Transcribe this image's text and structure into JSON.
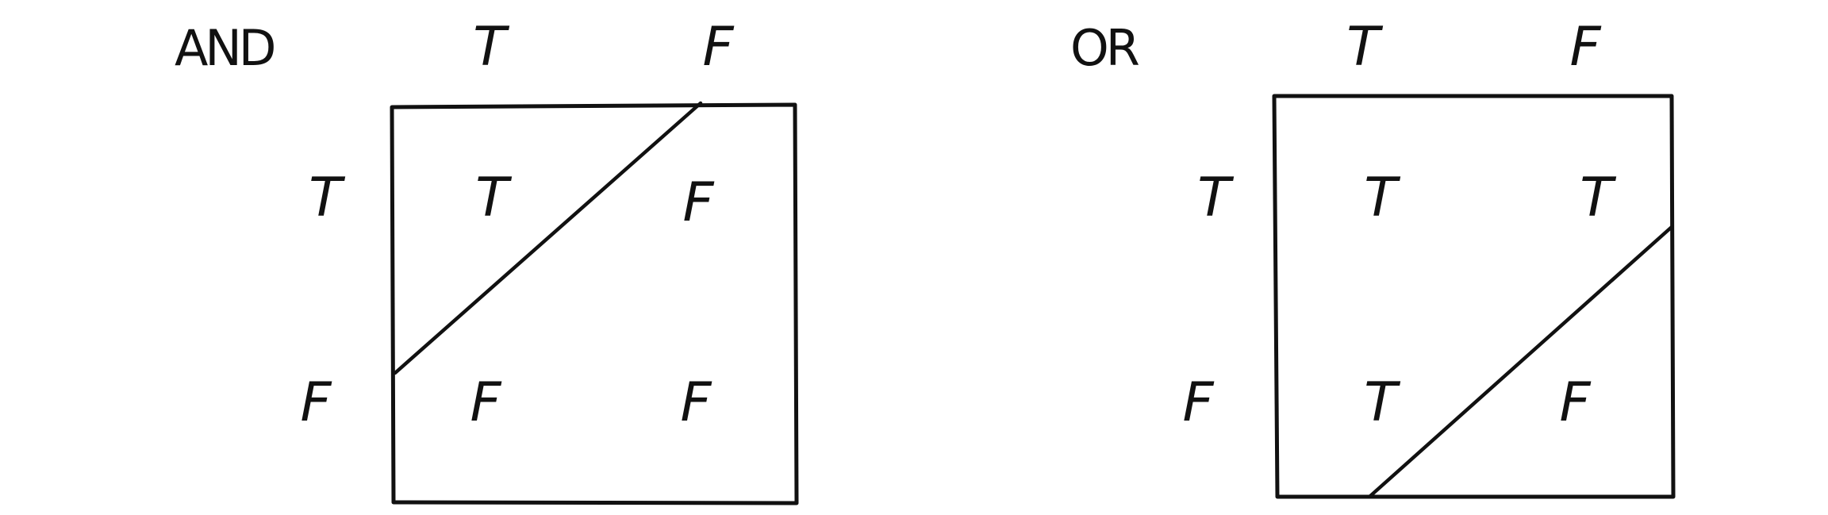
{
  "and_table": {
    "operator": "AND",
    "column_headers": [
      "T",
      "F"
    ],
    "row_headers": [
      "T",
      "F"
    ],
    "cells": [
      [
        "T",
        "F"
      ],
      [
        "F",
        "F"
      ]
    ]
  },
  "or_table": {
    "operator": "OR",
    "column_headers": [
      "T",
      "F"
    ],
    "row_headers": [
      "T",
      "F"
    ],
    "cells": [
      [
        "T",
        "T"
      ],
      [
        "T",
        "F"
      ]
    ]
  }
}
